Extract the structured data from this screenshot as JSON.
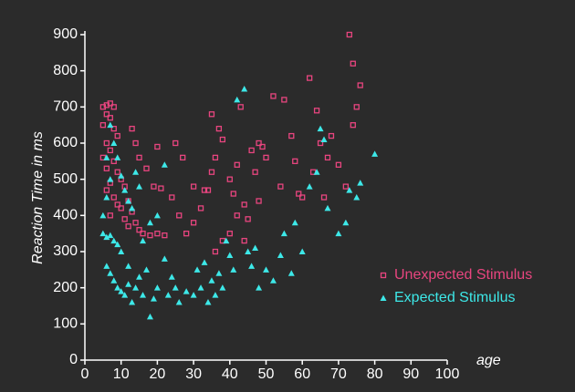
{
  "chart_data": {
    "type": "scatter",
    "x_label": "age",
    "y_label": "Reaction Time in ms",
    "xlim": [
      0,
      100
    ],
    "ylim": [
      0,
      900
    ],
    "xticks": [
      0,
      10,
      20,
      30,
      40,
      50,
      60,
      70,
      80,
      90,
      100
    ],
    "yticks": [
      0,
      100,
      200,
      300,
      400,
      500,
      600,
      700,
      800,
      900
    ],
    "legend": "right",
    "series": [
      {
        "name": "Unexpected Stimulus",
        "color": "#e8457f",
        "marker": "square",
        "x": [
          5,
          6,
          7,
          8,
          6,
          7,
          5,
          8,
          9,
          6,
          7,
          5,
          8,
          6,
          9,
          10,
          7,
          11,
          6,
          8,
          12,
          9,
          10,
          13,
          7,
          11,
          14,
          12,
          15,
          16,
          18,
          20,
          22,
          13,
          14,
          15,
          17,
          19,
          21,
          20,
          25,
          27,
          24,
          26,
          30,
          32,
          33,
          35,
          36,
          37,
          35,
          38,
          40,
          41,
          42,
          43,
          44,
          45,
          46,
          47,
          48,
          49,
          50,
          52,
          54,
          55,
          57,
          58,
          59,
          60,
          62,
          63,
          64,
          65,
          66,
          67,
          68,
          70,
          72,
          73,
          74,
          74,
          75,
          76,
          38,
          40,
          36,
          28,
          30,
          34,
          42,
          44,
          48
        ],
        "values": [
          700,
          705,
          710,
          700,
          680,
          670,
          650,
          640,
          620,
          600,
          580,
          560,
          550,
          530,
          520,
          500,
          490,
          480,
          470,
          450,
          440,
          430,
          420,
          410,
          400,
          390,
          380,
          370,
          360,
          350,
          345,
          350,
          345,
          640,
          600,
          560,
          530,
          480,
          475,
          590,
          600,
          560,
          450,
          400,
          380,
          420,
          470,
          520,
          560,
          640,
          680,
          610,
          500,
          460,
          540,
          700,
          430,
          390,
          580,
          520,
          600,
          590,
          560,
          730,
          480,
          720,
          620,
          550,
          460,
          450,
          780,
          520,
          690,
          600,
          450,
          560,
          620,
          540,
          480,
          900,
          820,
          650,
          700,
          760,
          330,
          350,
          300,
          350,
          480,
          470,
          400,
          330,
          440
        ]
      },
      {
        "name": "Expected Stimulus",
        "color": "#3de8e8",
        "marker": "triangle",
        "x": [
          5,
          6,
          7,
          8,
          9,
          5,
          6,
          7,
          6,
          8,
          7,
          9,
          10,
          11,
          12,
          13,
          14,
          15,
          6,
          7,
          8,
          9,
          10,
          11,
          12,
          13,
          14,
          15,
          16,
          17,
          18,
          19,
          20,
          22,
          23,
          24,
          25,
          26,
          28,
          30,
          31,
          32,
          33,
          34,
          35,
          36,
          37,
          38,
          39,
          40,
          41,
          42,
          44,
          45,
          46,
          47,
          48,
          50,
          52,
          54,
          55,
          57,
          58,
          60,
          62,
          64,
          65,
          66,
          67,
          70,
          72,
          73,
          76,
          80,
          75,
          20,
          22,
          18,
          10,
          12,
          16
        ],
        "values": [
          350,
          340,
          345,
          330,
          320,
          400,
          450,
          500,
          560,
          600,
          650,
          560,
          510,
          470,
          440,
          420,
          520,
          480,
          260,
          240,
          220,
          200,
          190,
          180,
          210,
          160,
          200,
          230,
          180,
          250,
          120,
          170,
          200,
          280,
          180,
          230,
          200,
          160,
          190,
          180,
          250,
          200,
          270,
          160,
          220,
          180,
          240,
          200,
          330,
          290,
          250,
          720,
          750,
          300,
          260,
          310,
          200,
          250,
          220,
          290,
          350,
          240,
          380,
          300,
          480,
          520,
          640,
          610,
          420,
          350,
          380,
          470,
          490,
          570,
          450,
          400,
          540,
          380,
          300,
          260,
          330
        ]
      }
    ]
  }
}
